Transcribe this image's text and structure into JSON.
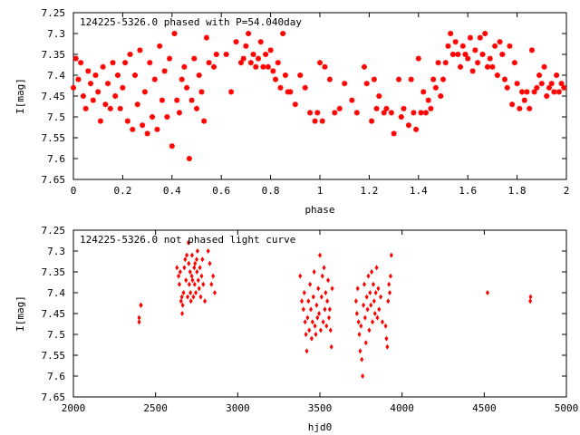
{
  "chart_data": [
    {
      "type": "scatter",
      "title": "124225-5326.0 phased with P=54.040day",
      "xlabel": "phase",
      "ylabel": "I[mag]",
      "xlim": [
        0,
        2
      ],
      "ylim": [
        7.65,
        7.25
      ],
      "y_inverted": true,
      "xticks": [
        "0",
        "0.2",
        "0.4",
        "0.6",
        "0.8",
        "1",
        "1.2",
        "1.4",
        "1.6",
        "1.8",
        "2"
      ],
      "yticks": [
        "7.25",
        "7.3",
        "7.35",
        "7.4",
        "7.45",
        "7.5",
        "7.55",
        "7.6",
        "7.65"
      ],
      "marker_color": "#ff0000",
      "marker": "star",
      "points": [
        [
          0.0,
          7.43
        ],
        [
          0.01,
          7.36
        ],
        [
          0.02,
          7.41
        ],
        [
          0.03,
          7.37
        ],
        [
          0.04,
          7.45
        ],
        [
          0.05,
          7.48
        ],
        [
          0.06,
          7.39
        ],
        [
          0.07,
          7.42
        ],
        [
          0.08,
          7.46
        ],
        [
          0.09,
          7.4
        ],
        [
          0.1,
          7.44
        ],
        [
          0.11,
          7.51
        ],
        [
          0.12,
          7.38
        ],
        [
          0.13,
          7.47
        ],
        [
          0.14,
          7.42
        ],
        [
          0.15,
          7.48
        ],
        [
          0.16,
          7.37
        ],
        [
          0.17,
          7.45
        ],
        [
          0.18,
          7.4
        ],
        [
          0.19,
          7.48
        ],
        [
          0.2,
          7.43
        ],
        [
          0.21,
          7.37
        ],
        [
          0.22,
          7.51
        ],
        [
          0.23,
          7.35
        ],
        [
          0.24,
          7.53
        ],
        [
          0.25,
          7.4
        ],
        [
          0.26,
          7.47
        ],
        [
          0.27,
          7.34
        ],
        [
          0.28,
          7.52
        ],
        [
          0.29,
          7.44
        ],
        [
          0.3,
          7.54
        ],
        [
          0.31,
          7.37
        ],
        [
          0.32,
          7.5
        ],
        [
          0.33,
          7.41
        ],
        [
          0.34,
          7.53
        ],
        [
          0.35,
          7.33
        ],
        [
          0.36,
          7.46
        ],
        [
          0.37,
          7.39
        ],
        [
          0.38,
          7.5
        ],
        [
          0.39,
          7.36
        ],
        [
          0.4,
          7.57
        ],
        [
          0.41,
          7.3
        ],
        [
          0.42,
          7.46
        ],
        [
          0.43,
          7.49
        ],
        [
          0.44,
          7.41
        ],
        [
          0.45,
          7.38
        ],
        [
          0.46,
          7.43
        ],
        [
          0.47,
          7.6
        ],
        [
          0.48,
          7.46
        ],
        [
          0.49,
          7.36
        ],
        [
          0.5,
          7.48
        ],
        [
          0.51,
          7.4
        ],
        [
          0.52,
          7.44
        ],
        [
          0.53,
          7.51
        ],
        [
          0.54,
          7.31
        ],
        [
          0.55,
          7.37
        ],
        [
          0.57,
          7.38
        ],
        [
          0.58,
          7.35
        ],
        [
          0.62,
          7.35
        ],
        [
          0.64,
          7.44
        ],
        [
          0.66,
          7.32
        ],
        [
          0.68,
          7.37
        ],
        [
          0.69,
          7.36
        ],
        [
          0.7,
          7.33
        ],
        [
          0.71,
          7.3
        ],
        [
          0.72,
          7.37
        ],
        [
          0.73,
          7.35
        ],
        [
          0.74,
          7.38
        ],
        [
          0.75,
          7.36
        ],
        [
          0.76,
          7.32
        ],
        [
          0.77,
          7.38
        ],
        [
          0.78,
          7.35
        ],
        [
          0.79,
          7.38
        ],
        [
          0.8,
          7.34
        ],
        [
          0.81,
          7.39
        ],
        [
          0.82,
          7.41
        ],
        [
          0.83,
          7.37
        ],
        [
          0.84,
          7.43
        ],
        [
          0.85,
          7.3
        ],
        [
          0.86,
          7.4
        ],
        [
          0.87,
          7.44
        ],
        [
          0.88,
          7.44
        ],
        [
          0.9,
          7.47
        ],
        [
          0.92,
          7.4
        ],
        [
          0.94,
          7.43
        ],
        [
          0.96,
          7.49
        ],
        [
          0.98,
          7.51
        ],
        [
          0.99,
          7.49
        ],
        [
          1.0,
          7.37
        ],
        [
          1.01,
          7.51
        ],
        [
          1.02,
          7.38
        ],
        [
          1.04,
          7.41
        ],
        [
          1.06,
          7.49
        ],
        [
          1.08,
          7.48
        ],
        [
          1.1,
          7.42
        ],
        [
          1.13,
          7.46
        ],
        [
          1.15,
          7.49
        ],
        [
          1.18,
          7.38
        ],
        [
          1.19,
          7.42
        ],
        [
          1.21,
          7.51
        ],
        [
          1.22,
          7.41
        ],
        [
          1.23,
          7.48
        ],
        [
          1.24,
          7.45
        ],
        [
          1.26,
          7.49
        ],
        [
          1.27,
          7.48
        ],
        [
          1.29,
          7.49
        ],
        [
          1.3,
          7.54
        ],
        [
          1.32,
          7.41
        ],
        [
          1.33,
          7.5
        ],
        [
          1.34,
          7.48
        ],
        [
          1.36,
          7.52
        ],
        [
          1.37,
          7.41
        ],
        [
          1.38,
          7.49
        ],
        [
          1.39,
          7.53
        ],
        [
          1.4,
          7.36
        ],
        [
          1.41,
          7.49
        ],
        [
          1.42,
          7.44
        ],
        [
          1.43,
          7.49
        ],
        [
          1.44,
          7.46
        ],
        [
          1.45,
          7.48
        ],
        [
          1.46,
          7.41
        ],
        [
          1.47,
          7.43
        ],
        [
          1.48,
          7.37
        ],
        [
          1.49,
          7.45
        ],
        [
          1.5,
          7.41
        ],
        [
          1.51,
          7.37
        ],
        [
          1.52,
          7.33
        ],
        [
          1.53,
          7.3
        ],
        [
          1.54,
          7.35
        ],
        [
          1.55,
          7.32
        ],
        [
          1.56,
          7.35
        ],
        [
          1.57,
          7.38
        ],
        [
          1.58,
          7.33
        ],
        [
          1.59,
          7.35
        ],
        [
          1.6,
          7.36
        ],
        [
          1.61,
          7.31
        ],
        [
          1.62,
          7.39
        ],
        [
          1.63,
          7.34
        ],
        [
          1.64,
          7.37
        ],
        [
          1.65,
          7.31
        ],
        [
          1.66,
          7.35
        ],
        [
          1.67,
          7.3
        ],
        [
          1.68,
          7.38
        ],
        [
          1.69,
          7.36
        ],
        [
          1.7,
          7.38
        ],
        [
          1.71,
          7.33
        ],
        [
          1.72,
          7.4
        ],
        [
          1.73,
          7.32
        ],
        [
          1.74,
          7.35
        ],
        [
          1.75,
          7.41
        ],
        [
          1.76,
          7.43
        ],
        [
          1.77,
          7.33
        ],
        [
          1.78,
          7.47
        ],
        [
          1.79,
          7.37
        ],
        [
          1.8,
          7.42
        ],
        [
          1.81,
          7.48
        ],
        [
          1.82,
          7.44
        ],
        [
          1.83,
          7.46
        ],
        [
          1.84,
          7.44
        ],
        [
          1.85,
          7.48
        ],
        [
          1.86,
          7.34
        ],
        [
          1.87,
          7.44
        ],
        [
          1.88,
          7.43
        ],
        [
          1.89,
          7.4
        ],
        [
          1.9,
          7.42
        ],
        [
          1.91,
          7.38
        ],
        [
          1.92,
          7.45
        ],
        [
          1.93,
          7.43
        ],
        [
          1.94,
          7.42
        ],
        [
          1.95,
          7.44
        ],
        [
          1.96,
          7.4
        ],
        [
          1.97,
          7.44
        ],
        [
          1.98,
          7.42
        ],
        [
          1.99,
          7.43
        ]
      ]
    },
    {
      "type": "scatter",
      "title": "124225-5326.0 not phased light curve",
      "xlabel": "hjd0",
      "ylabel": "I[mag]",
      "xlim": [
        2000,
        5000
      ],
      "ylim": [
        7.65,
        7.25
      ],
      "y_inverted": true,
      "xticks": [
        "2000",
        "2500",
        "3000",
        "3500",
        "4000",
        "4500",
        "5000"
      ],
      "yticks": [
        "7.25",
        "7.3",
        "7.35",
        "7.4",
        "7.45",
        "7.5",
        "7.55",
        "7.6",
        "7.65"
      ],
      "marker_color": "#ff0000",
      "marker": "diamond",
      "points": [
        [
          2400,
          7.46
        ],
        [
          2400,
          7.47
        ],
        [
          2410,
          7.43
        ],
        [
          2412,
          7.43
        ],
        [
          2630,
          7.34
        ],
        [
          2640,
          7.36
        ],
        [
          2645,
          7.38
        ],
        [
          2650,
          7.35
        ],
        [
          2655,
          7.42
        ],
        [
          2660,
          7.41
        ],
        [
          2662,
          7.45
        ],
        [
          2665,
          7.43
        ],
        [
          2670,
          7.4
        ],
        [
          2675,
          7.34
        ],
        [
          2680,
          7.32
        ],
        [
          2685,
          7.37
        ],
        [
          2690,
          7.31
        ],
        [
          2695,
          7.41
        ],
        [
          2700,
          7.28
        ],
        [
          2702,
          7.33
        ],
        [
          2705,
          7.38
        ],
        [
          2710,
          7.35
        ],
        [
          2712,
          7.4
        ],
        [
          2715,
          7.42
        ],
        [
          2720,
          7.36
        ],
        [
          2722,
          7.31
        ],
        [
          2725,
          7.37
        ],
        [
          2730,
          7.41
        ],
        [
          2735,
          7.34
        ],
        [
          2738,
          7.38
        ],
        [
          2740,
          7.33
        ],
        [
          2745,
          7.4
        ],
        [
          2750,
          7.32
        ],
        [
          2752,
          7.35
        ],
        [
          2755,
          7.3
        ],
        [
          2760,
          7.37
        ],
        [
          2765,
          7.39
        ],
        [
          2770,
          7.34
        ],
        [
          2775,
          7.41
        ],
        [
          2780,
          7.36
        ],
        [
          2785,
          7.32
        ],
        [
          2790,
          7.38
        ],
        [
          2800,
          7.42
        ],
        [
          2820,
          7.3
        ],
        [
          2830,
          7.33
        ],
        [
          2840,
          7.38
        ],
        [
          2850,
          7.36
        ],
        [
          2860,
          7.4
        ],
        [
          3380,
          7.36
        ],
        [
          3390,
          7.42
        ],
        [
          3400,
          7.44
        ],
        [
          3405,
          7.4
        ],
        [
          3410,
          7.47
        ],
        [
          3415,
          7.5
        ],
        [
          3420,
          7.54
        ],
        [
          3425,
          7.46
        ],
        [
          3430,
          7.42
        ],
        [
          3435,
          7.49
        ],
        [
          3440,
          7.38
        ],
        [
          3445,
          7.44
        ],
        [
          3450,
          7.51
        ],
        [
          3455,
          7.47
        ],
        [
          3460,
          7.41
        ],
        [
          3465,
          7.35
        ],
        [
          3470,
          7.48
        ],
        [
          3475,
          7.5
        ],
        [
          3480,
          7.43
        ],
        [
          3485,
          7.46
        ],
        [
          3490,
          7.39
        ],
        [
          3495,
          7.45
        ],
        [
          3500,
          7.31
        ],
        [
          3505,
          7.49
        ],
        [
          3510,
          7.41
        ],
        [
          3515,
          7.36
        ],
        [
          3520,
          7.47
        ],
        [
          3525,
          7.34
        ],
        [
          3530,
          7.44
        ],
        [
          3535,
          7.4
        ],
        [
          3540,
          7.48
        ],
        [
          3545,
          7.42
        ],
        [
          3550,
          7.37
        ],
        [
          3555,
          7.46
        ],
        [
          3560,
          7.44
        ],
        [
          3565,
          7.49
        ],
        [
          3570,
          7.53
        ],
        [
          3575,
          7.39
        ],
        [
          3720,
          7.42
        ],
        [
          3725,
          7.45
        ],
        [
          3730,
          7.39
        ],
        [
          3735,
          7.47
        ],
        [
          3740,
          7.5
        ],
        [
          3745,
          7.54
        ],
        [
          3750,
          7.48
        ],
        [
          3755,
          7.56
        ],
        [
          3760,
          7.6
        ],
        [
          3765,
          7.43
        ],
        [
          3770,
          7.38
        ],
        [
          3775,
          7.46
        ],
        [
          3780,
          7.52
        ],
        [
          3785,
          7.41
        ],
        [
          3790,
          7.44
        ],
        [
          3795,
          7.36
        ],
        [
          3800,
          7.49
        ],
        [
          3805,
          7.4
        ],
        [
          3810,
          7.43
        ],
        [
          3815,
          7.35
        ],
        [
          3820,
          7.47
        ],
        [
          3825,
          7.38
        ],
        [
          3830,
          7.42
        ],
        [
          3835,
          7.45
        ],
        [
          3840,
          7.4
        ],
        [
          3845,
          7.34
        ],
        [
          3850,
          7.46
        ],
        [
          3855,
          7.39
        ],
        [
          3860,
          7.44
        ],
        [
          3870,
          7.41
        ],
        [
          3880,
          7.47
        ],
        [
          3900,
          7.48
        ],
        [
          3905,
          7.51
        ],
        [
          3910,
          7.53
        ],
        [
          3915,
          7.42
        ],
        [
          3920,
          7.38
        ],
        [
          3925,
          7.4
        ],
        [
          3930,
          7.36
        ],
        [
          3935,
          7.31
        ],
        [
          4520,
          7.4
        ],
        [
          4780,
          7.42
        ],
        [
          4782,
          7.41
        ]
      ]
    }
  ]
}
